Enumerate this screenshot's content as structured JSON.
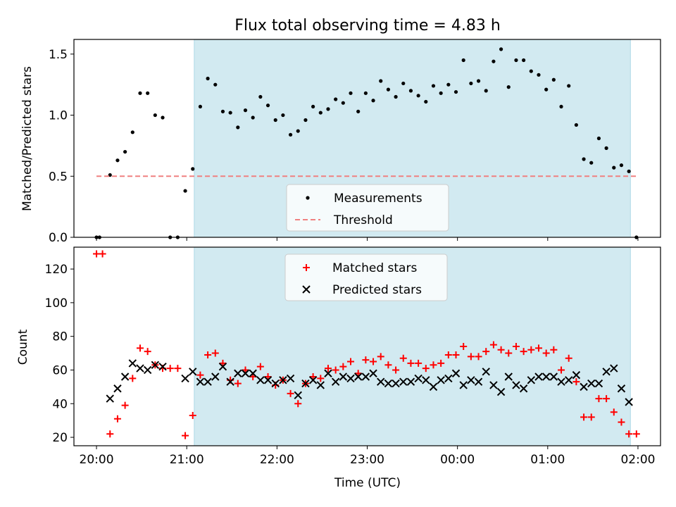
{
  "figure": {
    "title": "Flux total observing time = 4.83 h",
    "xlabel": "Time (UTC)"
  },
  "colors": {
    "highlight": "#add8e6",
    "measurement": "#000000",
    "threshold": "#f08080",
    "matched": "#ff0000",
    "predicted": "#000000"
  },
  "chart_data": [
    {
      "type": "scatter",
      "panel": "top",
      "ylabel": "Matched/Predicted stars",
      "xlim": [
        "19:45",
        "02:15"
      ],
      "ylim": [
        0,
        1.62
      ],
      "y_ticks": [
        0,
        0.5,
        1.0,
        1.5
      ],
      "y_tick_labels": [
        "0.0",
        "0.5",
        "1.0",
        "1.5"
      ],
      "highlight_span": [
        "21:05",
        "01:55"
      ],
      "legend": {
        "placement": "lower center",
        "entries": [
          "Measurements",
          "Threshold"
        ]
      },
      "series": [
        {
          "name": "Measurements",
          "style": "dots",
          "x": [
            "20:00",
            "20:02",
            "20:09",
            "20:14",
            "20:19",
            "20:24",
            "20:29",
            "20:34",
            "20:39",
            "20:44",
            "20:49",
            "20:54",
            "20:59",
            "21:04",
            "21:09",
            "21:14",
            "21:19",
            "21:24",
            "21:29",
            "21:34",
            "21:39",
            "21:44",
            "21:49",
            "21:54",
            "21:59",
            "22:04",
            "22:09",
            "22:14",
            "22:19",
            "22:24",
            "22:29",
            "22:34",
            "22:39",
            "22:44",
            "22:49",
            "22:54",
            "22:59",
            "23:04",
            "23:09",
            "23:14",
            "23:19",
            "23:24",
            "23:29",
            "23:34",
            "23:39",
            "23:44",
            "23:49",
            "23:54",
            "23:59",
            "00:04",
            "00:09",
            "00:14",
            "00:19",
            "00:24",
            "00:29",
            "00:34",
            "00:39",
            "00:44",
            "00:49",
            "00:54",
            "00:59",
            "01:04",
            "01:09",
            "01:14",
            "01:19",
            "01:24",
            "01:29",
            "01:34",
            "01:39",
            "01:44",
            "01:49",
            "01:54",
            "01:59"
          ],
          "y": [
            0,
            0,
            0.51,
            0.63,
            0.7,
            0.86,
            1.18,
            1.18,
            1.0,
            0.98,
            0,
            0,
            0.38,
            0.56,
            1.07,
            1.3,
            1.25,
            1.03,
            1.02,
            0.9,
            1.04,
            0.98,
            1.15,
            1.08,
            0.96,
            1.0,
            0.84,
            0.87,
            0.96,
            1.07,
            1.02,
            1.05,
            1.13,
            1.1,
            1.18,
            1.03,
            1.18,
            1.12,
            1.28,
            1.21,
            1.15,
            1.26,
            1.2,
            1.16,
            1.11,
            1.24,
            1.18,
            1.25,
            1.19,
            1.45,
            1.26,
            1.28,
            1.2,
            1.44,
            1.54,
            1.23,
            1.45,
            1.45,
            1.36,
            1.33,
            1.21,
            1.29,
            1.07,
            1.24,
            0.92,
            0.64,
            0.61,
            0.81,
            0.73,
            0.57,
            0.59,
            0.54,
            0
          ]
        },
        {
          "name": "Threshold",
          "style": "dashed",
          "x": [
            "20:00",
            "02:00"
          ],
          "y": [
            0.5,
            0.5
          ]
        }
      ]
    },
    {
      "type": "scatter",
      "panel": "bottom",
      "ylabel": "Count",
      "xlim": [
        "19:45",
        "02:15"
      ],
      "ylim": [
        15,
        133
      ],
      "y_ticks": [
        20,
        40,
        60,
        80,
        100,
        120
      ],
      "x_ticks": [
        "20:00",
        "21:00",
        "22:00",
        "23:00",
        "00:00",
        "01:00",
        "02:00"
      ],
      "highlight_span": [
        "21:05",
        "01:55"
      ],
      "legend": {
        "placement": "upper center",
        "entries": [
          "Matched stars",
          "Predicted stars"
        ]
      },
      "series": [
        {
          "name": "Matched stars",
          "marker": "plus",
          "x": [
            "20:00",
            "20:04",
            "20:09",
            "20:14",
            "20:19",
            "20:24",
            "20:29",
            "20:34",
            "20:39",
            "20:44",
            "20:49",
            "20:54",
            "20:59",
            "21:04",
            "21:09",
            "21:14",
            "21:19",
            "21:24",
            "21:29",
            "21:34",
            "21:39",
            "21:44",
            "21:49",
            "21:54",
            "21:59",
            "22:04",
            "22:09",
            "22:14",
            "22:19",
            "22:24",
            "22:29",
            "22:34",
            "22:39",
            "22:44",
            "22:49",
            "22:54",
            "22:59",
            "23:04",
            "23:09",
            "23:14",
            "23:19",
            "23:24",
            "23:29",
            "23:34",
            "23:39",
            "23:44",
            "23:49",
            "23:54",
            "23:59",
            "00:04",
            "00:09",
            "00:14",
            "00:19",
            "00:24",
            "00:29",
            "00:34",
            "00:39",
            "00:44",
            "00:49",
            "00:54",
            "00:59",
            "01:04",
            "01:09",
            "01:14",
            "01:19",
            "01:24",
            "01:29",
            "01:34",
            "01:39",
            "01:44",
            "01:49",
            "01:54",
            "01:59"
          ],
          "y": [
            129,
            129,
            22,
            31,
            39,
            55,
            73,
            71,
            63,
            61,
            61,
            61,
            21,
            33,
            57,
            69,
            70,
            64,
            54,
            52,
            60,
            56,
            62,
            56,
            51,
            54,
            46,
            40,
            52,
            56,
            55,
            61,
            60,
            62,
            65,
            58,
            66,
            65,
            68,
            63,
            60,
            67,
            64,
            64,
            61,
            63,
            64,
            69,
            69,
            74,
            68,
            68,
            71,
            75,
            72,
            70,
            74,
            71,
            72,
            73,
            70,
            72,
            60,
            67,
            53,
            32,
            32,
            43,
            43,
            35,
            29,
            22,
            22
          ]
        },
        {
          "name": "Predicted stars",
          "marker": "x",
          "x": [
            "20:09",
            "20:14",
            "20:19",
            "20:24",
            "20:29",
            "20:34",
            "20:39",
            "20:44",
            "20:59",
            "21:04",
            "21:09",
            "21:14",
            "21:19",
            "21:24",
            "21:29",
            "21:34",
            "21:39",
            "21:44",
            "21:49",
            "21:54",
            "21:59",
            "22:04",
            "22:09",
            "22:14",
            "22:19",
            "22:24",
            "22:29",
            "22:34",
            "22:39",
            "22:44",
            "22:49",
            "22:54",
            "22:59",
            "23:04",
            "23:09",
            "23:14",
            "23:19",
            "23:24",
            "23:29",
            "23:34",
            "23:39",
            "23:44",
            "23:49",
            "23:54",
            "23:59",
            "00:04",
            "00:09",
            "00:14",
            "00:19",
            "00:24",
            "00:29",
            "00:34",
            "00:39",
            "00:44",
            "00:49",
            "00:54",
            "00:59",
            "01:04",
            "01:09",
            "01:14",
            "01:19",
            "01:24",
            "01:29",
            "01:34",
            "01:39",
            "01:44",
            "01:49",
            "01:54"
          ],
          "y": [
            43,
            49,
            56,
            64,
            61,
            60,
            63,
            62,
            55,
            59,
            53,
            53,
            56,
            62,
            53,
            58,
            58,
            58,
            54,
            54,
            52,
            54,
            55,
            45,
            52,
            54,
            51,
            58,
            53,
            56,
            55,
            56,
            56,
            58,
            53,
            52,
            52,
            53,
            53,
            55,
            54,
            50,
            54,
            55,
            58,
            51,
            54,
            53,
            59,
            51,
            47,
            56,
            51,
            49,
            54,
            56,
            56,
            56,
            53,
            54,
            57,
            50,
            52,
            52,
            59,
            61,
            49,
            41
          ]
        }
      ]
    }
  ]
}
